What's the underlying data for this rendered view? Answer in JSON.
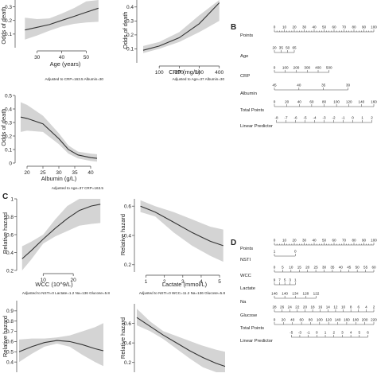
{
  "panel_letters": {
    "B": "B",
    "C": "C",
    "D": "D"
  },
  "chart_data": [
    {
      "type": "line",
      "ylabel": "Odds of death",
      "xlabel": "Age (years)",
      "note": "Adjusted to CRP=163.5 Albumin=30",
      "xlim": [
        22,
        57
      ],
      "ylim": [
        0,
        0.35
      ],
      "xticks": [
        30,
        40,
        50
      ],
      "yticks": [
        0.1,
        0.2,
        0.3
      ],
      "x": [
        25,
        30,
        35,
        40,
        45,
        50,
        55
      ],
      "y": [
        0.13,
        0.15,
        0.17,
        0.2,
        0.23,
        0.26,
        0.29
      ],
      "lower": [
        0.06,
        0.09,
        0.125,
        0.155,
        0.175,
        0.185,
        0.19
      ],
      "upper": [
        0.22,
        0.21,
        0.215,
        0.25,
        0.29,
        0.34,
        0.39
      ]
    },
    {
      "type": "line",
      "ylabel": "Odds of death",
      "xlabel": "CRP (mg/L)",
      "note": "Adjusted to Age=37 Albumin=30",
      "xlim": [
        0,
        425
      ],
      "ylim": [
        0,
        0.45
      ],
      "xticks": [
        100,
        200,
        300,
        400
      ],
      "yticks": [
        0.1,
        0.2,
        0.3,
        0.4
      ],
      "x": [
        20,
        100,
        200,
        300,
        400
      ],
      "y": [
        0.09,
        0.12,
        0.18,
        0.28,
        0.43
      ],
      "lower": [
        0.07,
        0.1,
        0.15,
        0.22,
        0.3
      ],
      "upper": [
        0.12,
        0.15,
        0.22,
        0.34,
        0.55
      ]
    },
    {
      "type": "line",
      "ylabel": "Odds of death",
      "xlabel": "Albumin (g/L)",
      "note": "Adjusted to Age=37 CRP=163.5",
      "xlim": [
        17,
        44
      ],
      "ylim": [
        0,
        0.5
      ],
      "xticks": [
        20,
        25,
        30,
        35,
        40
      ],
      "yticks": [
        0.0,
        0.1,
        0.2,
        0.3,
        0.4,
        0.5
      ],
      "x": [
        18,
        20,
        25,
        30,
        33,
        36,
        40,
        42
      ],
      "y": [
        0.34,
        0.33,
        0.29,
        0.18,
        0.1,
        0.06,
        0.04,
        0.035
      ],
      "lower": [
        0.23,
        0.24,
        0.23,
        0.14,
        0.07,
        0.035,
        0.015,
        0.01
      ],
      "upper": [
        0.45,
        0.43,
        0.35,
        0.22,
        0.13,
        0.085,
        0.07,
        0.065
      ]
    },
    {
      "type": "line",
      "ylabel": "Relative hazard",
      "xlabel": "WCC (10^9/L)",
      "note": "Adjusted to NSTI=0 Lactate=1.2 Na=136 Glucose=5.8",
      "xlim": [
        2,
        30
      ],
      "ylim": [
        0.2,
        1.0
      ],
      "xticks": [
        10,
        20
      ],
      "yticks": [
        0.2,
        0.4,
        0.6,
        0.8,
        1.0
      ],
      "x": [
        3,
        6,
        10,
        14,
        18,
        22,
        26,
        29
      ],
      "y": [
        0.33,
        0.42,
        0.55,
        0.67,
        0.78,
        0.87,
        0.92,
        0.94
      ],
      "lower": [
        0.18,
        0.32,
        0.5,
        0.58,
        0.64,
        0.7,
        0.72,
        0.73
      ],
      "upper": [
        0.47,
        0.52,
        0.6,
        0.77,
        0.92,
        1.04,
        1.12,
        1.15
      ]
    },
    {
      "type": "line",
      "ylabel": "Relative hazard",
      "xlabel": "Lactate (mmol/L)",
      "note": "Adjusted to NSTI=0 WCC=11.2 Na=136 Glucose=5.8",
      "xlim": [
        0.5,
        5.3
      ],
      "ylim": [
        0.15,
        0.65
      ],
      "xticks": [
        1,
        2,
        3,
        4,
        5
      ],
      "yticks": [
        0.2,
        0.4,
        0.6
      ],
      "x": [
        0.7,
        1.5,
        2.5,
        3.5,
        4.5,
        5.2
      ],
      "y": [
        0.6,
        0.56,
        0.49,
        0.42,
        0.36,
        0.33
      ],
      "lower": [
        0.56,
        0.53,
        0.42,
        0.33,
        0.26,
        0.22
      ],
      "upper": [
        0.64,
        0.6,
        0.56,
        0.51,
        0.46,
        0.44
      ]
    },
    {
      "type": "line",
      "ylabel": "Relative hazard",
      "xlabel": "",
      "note": "",
      "xlim": [
        0,
        1
      ],
      "ylim": [
        0.3,
        1.0
      ],
      "xticks": [],
      "yticks": [
        0.4,
        0.5,
        0.6,
        0.7,
        0.8,
        0.9
      ],
      "x": [
        0,
        0.15,
        0.3,
        0.45,
        0.6,
        0.75,
        0.9,
        1.0
      ],
      "y": [
        0.5,
        0.55,
        0.59,
        0.61,
        0.6,
        0.57,
        0.53,
        0.51
      ],
      "lower": [
        0.4,
        0.48,
        0.55,
        0.58,
        0.55,
        0.47,
        0.4,
        0.36
      ],
      "upper": [
        0.62,
        0.63,
        0.63,
        0.64,
        0.66,
        0.7,
        0.74,
        0.78
      ]
    },
    {
      "type": "line",
      "ylabel": "Relative hazard",
      "xlabel": "",
      "note": "",
      "xlim": [
        0,
        1
      ],
      "ylim": [
        0.1,
        0.8
      ],
      "xticks": [],
      "yticks": [
        0.2,
        0.4,
        0.6
      ],
      "x": [
        0,
        0.15,
        0.3,
        0.45,
        0.6,
        0.75,
        0.9,
        1.0
      ],
      "y": [
        0.66,
        0.57,
        0.48,
        0.4,
        0.32,
        0.25,
        0.19,
        0.16
      ],
      "lower": [
        0.58,
        0.52,
        0.44,
        0.34,
        0.24,
        0.15,
        0.08,
        0.05
      ],
      "upper": [
        0.75,
        0.62,
        0.52,
        0.47,
        0.42,
        0.37,
        0.33,
        0.31
      ]
    }
  ],
  "nomograms": [
    {
      "rows": [
        {
          "label": "Points",
          "ticks": [
            "0",
            "10",
            "20",
            "30",
            "40",
            "50",
            "60",
            "70",
            "80",
            "90",
            "100"
          ]
        },
        {
          "label": "Age",
          "ticks": [
            "20",
            "35",
            "50",
            "65"
          ]
        },
        {
          "label": "CRP",
          "ticks": [
            "0",
            "100",
            "200",
            "300",
            "400",
            "500"
          ]
        },
        {
          "label": "Albumin",
          "ticks": [
            "45",
            "40",
            "35",
            "30"
          ]
        },
        {
          "label": "Total Points",
          "ticks": [
            "0",
            "20",
            "40",
            "60",
            "80",
            "100",
            "120",
            "140",
            "160"
          ]
        },
        {
          "label": "Linear Predictor",
          "ticks": [
            "-8",
            "-7",
            "-6",
            "-5",
            "-4",
            "-3",
            "-2",
            "-1",
            "0",
            "1",
            "2"
          ]
        }
      ]
    },
    {
      "rows": [
        {
          "label": "Points",
          "ticks": [
            "0",
            "10",
            "20",
            "30",
            "40",
            "50",
            "60",
            "70",
            "80",
            "90",
            "100"
          ]
        },
        {
          "label": "NSTI",
          "ticks": [
            "1",
            "0"
          ]
        },
        {
          "label": "WCC",
          "ticks": [
            "0",
            "5",
            "10",
            "15",
            "20",
            "25",
            "30",
            "35",
            "40",
            "45",
            "50",
            "55",
            "60"
          ]
        },
        {
          "label": "Lactate",
          "ticks": [
            "9",
            "7",
            "5",
            "3",
            "1"
          ]
        },
        {
          "label": "Na",
          "ticks": [
            "146",
            "140",
            "134",
            "128",
            "122"
          ]
        },
        {
          "label": "Glucose",
          "ticks": [
            "28",
            "26",
            "24",
            "22",
            "20",
            "18",
            "16",
            "14",
            "12",
            "10",
            "8",
            "6",
            "4",
            "2"
          ]
        },
        {
          "label": "Total Points",
          "ticks": [
            "0",
            "20",
            "40",
            "60",
            "80",
            "100",
            "120",
            "140",
            "160",
            "180",
            "200",
            "220"
          ]
        },
        {
          "label": "Linear Predictor",
          "ticks": [
            "-5",
            "-3",
            "-1",
            "0",
            "1",
            "2",
            "3",
            "4",
            "5",
            "6"
          ]
        }
      ]
    }
  ]
}
